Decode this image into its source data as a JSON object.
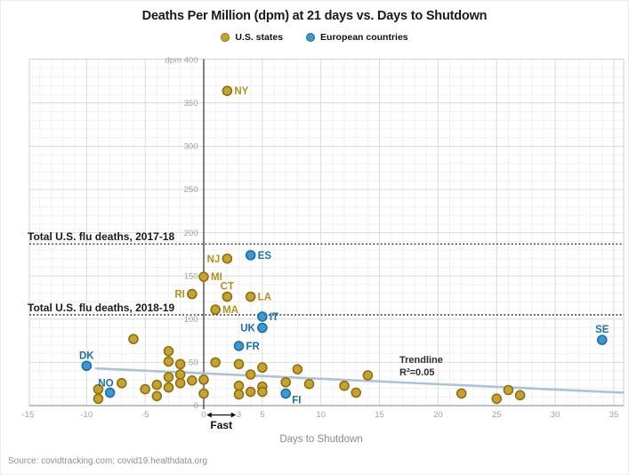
{
  "source": "Source: covidtracking.com; covid19.healthdata.org",
  "colors": {
    "grid_minor": "#f2f0ef",
    "grid_major": "#dcdada",
    "plot_border": "#d0d0d0",
    "axis_line": "#9b9b9b",
    "zero_line": "#4d4d4d",
    "tick_text": "#a0a0a0",
    "axis_label_text": "#8a8a8a",
    "ref_line": "#1a1a1a",
    "annotation_text": "#111111",
    "trend_label_text": "#2e2e2e",
    "title_text": "#1a1a1a",
    "source_text": "#8f8f8f"
  },
  "chart_data": {
    "type": "scatter",
    "title": "Deaths Per Million (dpm) at 21 days vs. Days to Shutdown",
    "xlabel": "Days to Shutdown",
    "ylabel": "dpm",
    "xlim": [
      -14.9,
      35.9
    ],
    "ylim": [
      0,
      400
    ],
    "grid": {
      "minor_x_step": 1,
      "minor_y_step": 10,
      "major_x_step": 5,
      "major_y_step": 50
    },
    "legend_position": "top-center",
    "x_ticks": [
      {
        "value": -15,
        "label": "-15"
      },
      {
        "value": -10,
        "label": "-10"
      },
      {
        "value": -5,
        "label": "-5"
      },
      {
        "value": 0,
        "label": "0"
      },
      {
        "value": 3,
        "label": "3"
      },
      {
        "value": 5,
        "label": "5"
      },
      {
        "value": 10,
        "label": "10"
      },
      {
        "value": 15,
        "label": "15"
      },
      {
        "value": 20,
        "label": "20"
      },
      {
        "value": 25,
        "label": "25"
      },
      {
        "value": 30,
        "label": "30"
      },
      {
        "value": 35,
        "label": "35"
      }
    ],
    "y_ticks": [
      {
        "value": 400,
        "label": "dpm 400"
      },
      {
        "value": 350,
        "label": "350"
      },
      {
        "value": 300,
        "label": "300"
      },
      {
        "value": 250,
        "label": "250"
      },
      {
        "value": 200,
        "label": "200"
      },
      {
        "value": 150,
        "label": "150"
      },
      {
        "value": 100,
        "label": "100"
      },
      {
        "value": 50,
        "label": "50"
      },
      {
        "value": 0,
        "label": "0"
      }
    ],
    "series": [
      {
        "name": "U.S. states",
        "fill": "#c9a22b",
        "stroke": "#8a7115",
        "label_color": "#b3901d",
        "points": [
          {
            "x": 2,
            "y": 364,
            "label": "NY",
            "side": "right"
          },
          {
            "x": 2,
            "y": 170,
            "label": "NJ",
            "side": "left"
          },
          {
            "x": 0,
            "y": 149,
            "label": "MI",
            "side": "right"
          },
          {
            "x": 2,
            "y": 126,
            "label": "CT",
            "side": "top"
          },
          {
            "x": -1,
            "y": 129,
            "label": "RI",
            "side": "left"
          },
          {
            "x": 4,
            "y": 126,
            "label": "LA",
            "side": "right"
          },
          {
            "x": 1,
            "y": 111,
            "label": "MA",
            "side": "right"
          },
          {
            "x": -9,
            "y": 19
          },
          {
            "x": -9,
            "y": 8
          },
          {
            "x": -7,
            "y": 26
          },
          {
            "x": -6,
            "y": 77
          },
          {
            "x": -5,
            "y": 19
          },
          {
            "x": -4,
            "y": 24
          },
          {
            "x": -4,
            "y": 11
          },
          {
            "x": -3,
            "y": 63
          },
          {
            "x": -3,
            "y": 51
          },
          {
            "x": -3,
            "y": 33
          },
          {
            "x": -3,
            "y": 21
          },
          {
            "x": -2,
            "y": 48
          },
          {
            "x": -2,
            "y": 36
          },
          {
            "x": -2,
            "y": 26
          },
          {
            "x": -1,
            "y": 29
          },
          {
            "x": 0,
            "y": 30
          },
          {
            "x": 0,
            "y": 14
          },
          {
            "x": 1,
            "y": 50
          },
          {
            "x": 3,
            "y": 48
          },
          {
            "x": 3,
            "y": 23
          },
          {
            "x": 3,
            "y": 13
          },
          {
            "x": 4,
            "y": 36
          },
          {
            "x": 4,
            "y": 16
          },
          {
            "x": 5,
            "y": 44
          },
          {
            "x": 5,
            "y": 22
          },
          {
            "x": 5,
            "y": 16
          },
          {
            "x": 7,
            "y": 27
          },
          {
            "x": 8,
            "y": 42
          },
          {
            "x": 9,
            "y": 25
          },
          {
            "x": 12,
            "y": 23
          },
          {
            "x": 13,
            "y": 15
          },
          {
            "x": 14,
            "y": 35
          },
          {
            "x": 22,
            "y": 14
          },
          {
            "x": 25,
            "y": 8
          },
          {
            "x": 26,
            "y": 18
          },
          {
            "x": 27,
            "y": 12
          }
        ]
      },
      {
        "name": "European countries",
        "fill": "#3d98cf",
        "stroke": "#1b6ea6",
        "label_color": "#1872ab",
        "points": [
          {
            "x": -10,
            "y": 46,
            "label": "DK",
            "side": "top"
          },
          {
            "x": -8,
            "y": 15,
            "label": "NO",
            "side": "top-left"
          },
          {
            "x": 3,
            "y": 69,
            "label": "FR",
            "side": "right"
          },
          {
            "x": 4,
            "y": 174,
            "label": "ES",
            "side": "right"
          },
          {
            "x": 5,
            "y": 103,
            "label": "IT",
            "side": "right"
          },
          {
            "x": 5,
            "y": 90,
            "label": "UK",
            "side": "left"
          },
          {
            "x": 7,
            "y": 14,
            "label": "FI",
            "side": "bottom-right"
          },
          {
            "x": 34,
            "y": 76,
            "label": "SE",
            "side": "top"
          }
        ]
      }
    ],
    "reference_lines": [
      {
        "y": 187,
        "label": "Total U.S. flu deaths, 2017-18"
      },
      {
        "y": 105,
        "label": "Total U.S. flu deaths, 2018-19"
      }
    ],
    "trendline": {
      "label": "Trendline",
      "r2_label": "R²=0.05",
      "color": "#aac3da",
      "x1": -9.2,
      "y1": 43,
      "x2": 35.8,
      "y2": 15
    },
    "fast_annotation": {
      "label": "Fast",
      "from_x": 0.25,
      "to_x": 2.75
    }
  }
}
